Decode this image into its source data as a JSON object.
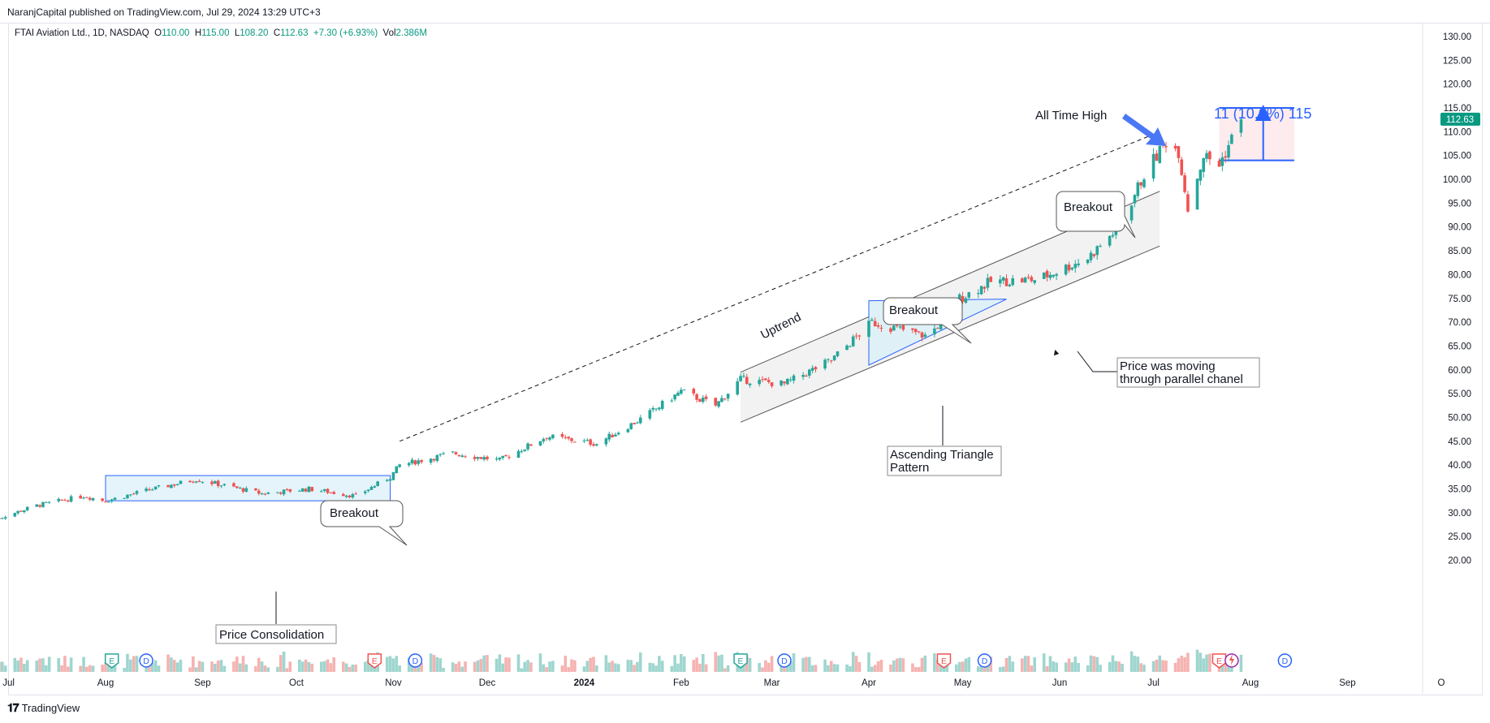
{
  "header": {
    "publisher_line": "NaranjCapital published on TradingView.com, Jul 29, 2024 13:29 UTC+3"
  },
  "legend": {
    "symbol": "FTAI Aviation Ltd., 1D, NASDAQ",
    "o_label": "O",
    "o_value": "110.00",
    "h_label": "H",
    "h_value": "115.00",
    "l_label": "L",
    "l_value": "108.20",
    "c_label": "C",
    "c_value": "112.63",
    "change": "+7.30 (+6.93%)",
    "vol_label": "Vol",
    "vol_value": "2.386M"
  },
  "footer": {
    "brand": "TradingView"
  },
  "colors": {
    "up": "#26a69a",
    "down": "#ef5350",
    "volume_up": "#9fd6cf",
    "volume_down": "#f5b3b1",
    "blue": "#2962ff",
    "last_price_bg": "#089981"
  },
  "annotations": {
    "price_consolidation": "Price Consolidation",
    "breakout_1": "Breakout",
    "breakout_2": "Breakout",
    "breakout_3": "Breakout",
    "uptrend": "Uptrend",
    "ascending_triangle_1": "Ascending Triangle",
    "ascending_triangle_2": "Pattern",
    "channel_1": "Price was moving",
    "channel_2": "through parallel chanel",
    "all_time_high": "All Time High",
    "measure": "11 (10.6%) 115"
  },
  "event_markers": [
    "E",
    "D",
    "E",
    "D",
    "E",
    "D",
    "E",
    "D",
    "E",
    "D"
  ],
  "chart_data": {
    "type": "candlestick",
    "title": "FTAI Aviation Ltd., 1D, NASDAQ",
    "last_price": 112.63,
    "last_price_label": "112.63",
    "y_ticks": [
      "130.00",
      "125.00",
      "120.00",
      "115.00",
      "110.00",
      "105.00",
      "100.00",
      "95.00",
      "90.00",
      "85.00",
      "80.00",
      "75.00",
      "70.00",
      "65.00",
      "60.00",
      "55.00",
      "50.00",
      "45.00",
      "40.00",
      "35.00",
      "30.00",
      "25.00",
      "20.00"
    ],
    "ylim": [
      19,
      131
    ],
    "x_ticks": [
      "Jul",
      "Aug",
      "Sep",
      "Oct",
      "Nov",
      "Dec",
      "2024",
      "Feb",
      "Mar",
      "Apr",
      "May",
      "Jun",
      "Jul",
      "Aug",
      "Sep",
      "O"
    ],
    "x_ticks_bold": [
      "2024"
    ],
    "close_path": [
      [
        "2023-06-26",
        28.5
      ],
      [
        "2023-07-10",
        31.5
      ],
      [
        "2023-07-25",
        33.5
      ],
      [
        "2023-08-01",
        32.5
      ],
      [
        "2023-08-15",
        34.8
      ],
      [
        "2023-08-30",
        37.0
      ],
      [
        "2023-09-20",
        34.0
      ],
      [
        "2023-10-05",
        35.0
      ],
      [
        "2023-10-20",
        33.5
      ],
      [
        "2023-10-31",
        37.5
      ],
      [
        "2023-11-03",
        40.0
      ],
      [
        "2023-11-20",
        42.5
      ],
      [
        "2023-12-05",
        41.0
      ],
      [
        "2023-12-20",
        46.0
      ],
      [
        "2024-01-05",
        44.5
      ],
      [
        "2024-01-20",
        50.0
      ],
      [
        "2024-02-01",
        55.5
      ],
      [
        "2024-02-12",
        52.5
      ],
      [
        "2024-02-20",
        58.0
      ],
      [
        "2024-03-05",
        57.0
      ],
      [
        "2024-03-20",
        62.0
      ],
      [
        "2024-04-02",
        70.0
      ],
      [
        "2024-04-20",
        67.0
      ],
      [
        "2024-04-30",
        75.0
      ],
      [
        "2024-05-10",
        78.5
      ],
      [
        "2024-05-25",
        79.0
      ],
      [
        "2024-06-10",
        83.5
      ],
      [
        "2024-06-20",
        90.0
      ],
      [
        "2024-06-28",
        101.0
      ],
      [
        "2024-07-05",
        108.0
      ],
      [
        "2024-07-09",
        106.0
      ],
      [
        "2024-07-12",
        94.0
      ],
      [
        "2024-07-17",
        105.0
      ],
      [
        "2024-07-22",
        103.0
      ],
      [
        "2024-07-29",
        112.63
      ]
    ],
    "consolidation_box": {
      "from": "2023-08-01",
      "to": "2023-10-31",
      "low": 32.5,
      "high": 37.8
    },
    "triangle": {
      "from": "2024-04-01",
      "to": "2024-05-15",
      "top": 74.5,
      "bottom": 61.0
    },
    "channel": {
      "from": "2024-02-20",
      "to": "2024-07-03",
      "lower_start": 49.0,
      "lower_end": 86.0,
      "upper_start": 59.5,
      "upper_end": 97.5
    },
    "uptrend_line": {
      "from": "2023-11-03",
      "to": "2024-07-03",
      "start": 45.0,
      "end": 110.0
    },
    "all_time_high": 111.0,
    "measure_box": {
      "from": "2024-07-22",
      "to": "2024-08-15",
      "low": 104.0,
      "high": 115.0,
      "change": 11,
      "pct": 10.6
    }
  }
}
